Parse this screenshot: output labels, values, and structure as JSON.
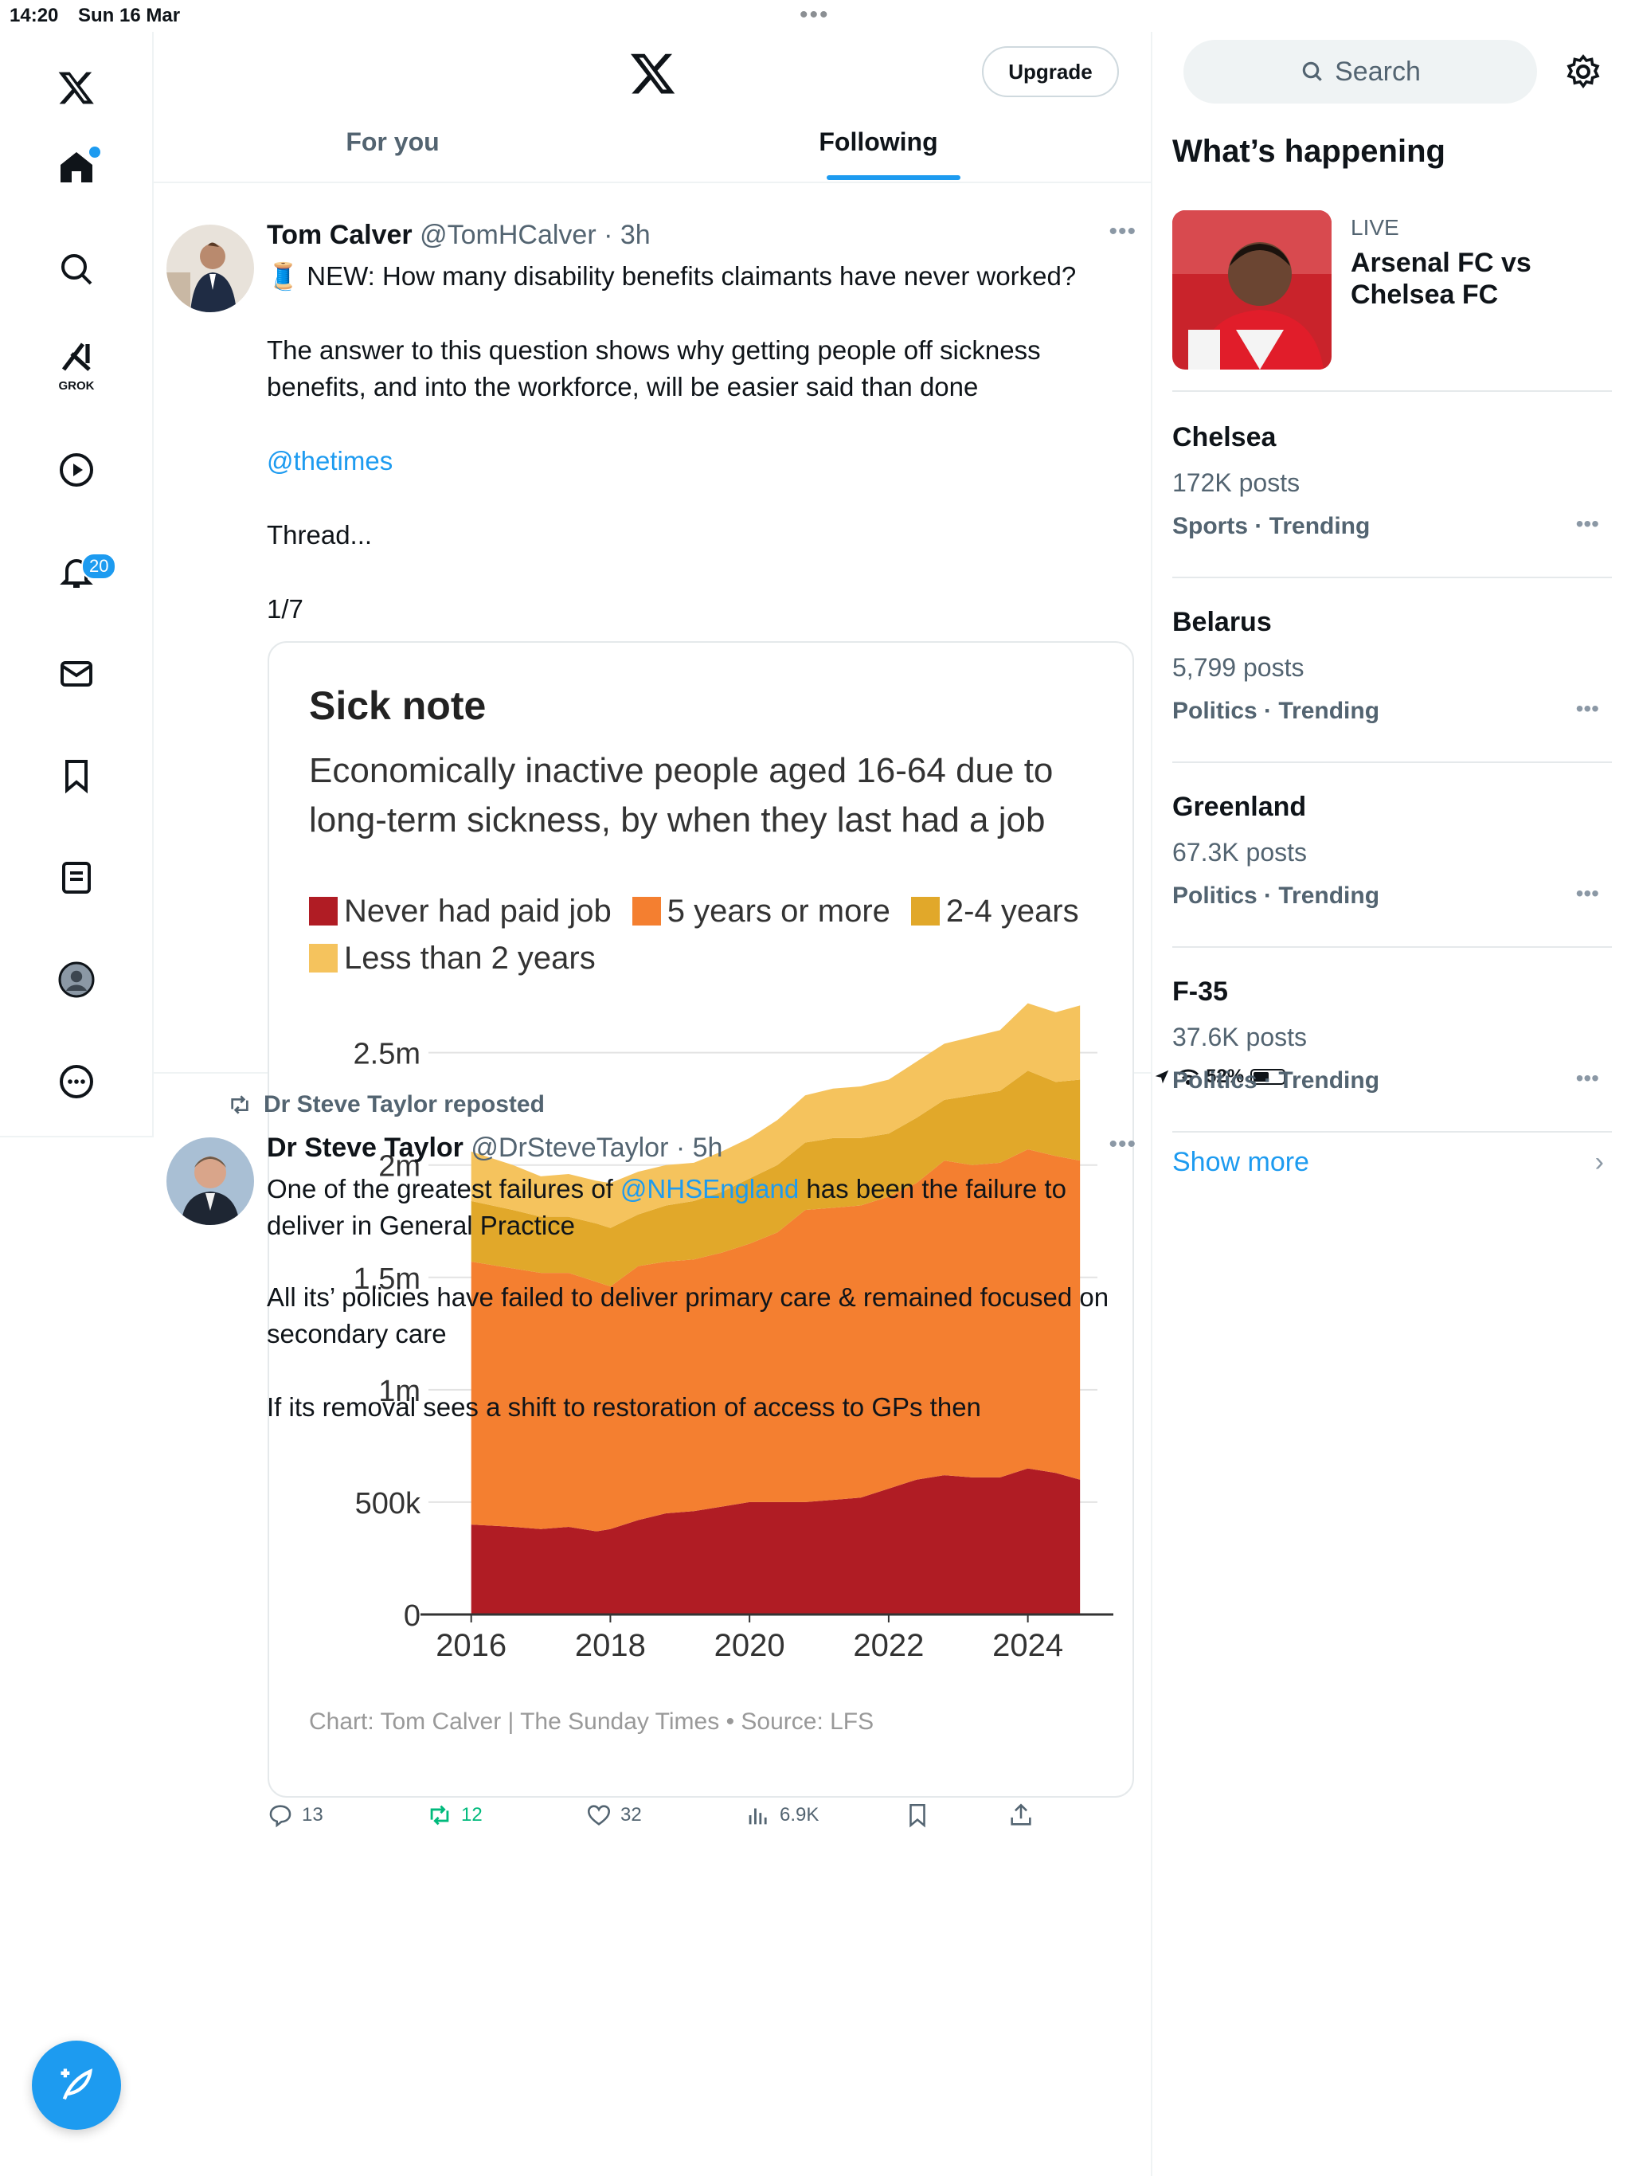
{
  "status": {
    "time": "14:20",
    "date": "Sun 16 Mar",
    "battery": "52%",
    "battery_level": 0.52
  },
  "nav": {
    "grok_label": "GROK",
    "notifications_badge": "20"
  },
  "header": {
    "upgrade_label": "Upgrade",
    "tabs": [
      "For you",
      "Following"
    ],
    "active_tab": "Following"
  },
  "tweet1": {
    "name": "Tom Calver",
    "handle": "@TomHCalver",
    "time": "· 3h",
    "line1": "🧵 NEW: How many disability benefits claimants have never worked?",
    "line2": "The answer to this question shows why getting people off sickness benefits, and into the workforce, will be easier said than done",
    "mention": "@thetimes",
    "line3": "Thread...",
    "line4": "1/7",
    "stats": {
      "replies": "13",
      "reposts": "12",
      "likes": "32",
      "views": "6.9K"
    }
  },
  "chart_data": {
    "type": "area",
    "title": "Sick note",
    "subtitle": "Economically inactive people aged 16-64 due to long-term sickness, by when they last had a job",
    "source": "Chart: Tom Calver | The Sunday Times • Source: LFS",
    "x": [
      2016.0,
      2016.6,
      2017.0,
      2017.4,
      2017.8,
      2018.0,
      2018.4,
      2018.8,
      2019.2,
      2019.6,
      2020.0,
      2020.4,
      2020.8,
      2021.2,
      2021.6,
      2022.0,
      2022.4,
      2022.8,
      2023.2,
      2023.6,
      2024.0,
      2024.4,
      2024.75
    ],
    "series": [
      {
        "name": "Never had paid job",
        "color": "#b01c24",
        "values": [
          400,
          390,
          380,
          390,
          370,
          380,
          420,
          450,
          460,
          480,
          500,
          500,
          500,
          510,
          520,
          560,
          600,
          620,
          610,
          610,
          650,
          630,
          600
        ]
      },
      {
        "name": "5 years or more",
        "color": "#f47f30",
        "values": [
          1170,
          1150,
          1140,
          1130,
          1110,
          1080,
          1130,
          1120,
          1120,
          1130,
          1150,
          1200,
          1300,
          1300,
          1300,
          1300,
          1320,
          1400,
          1390,
          1400,
          1420,
          1410,
          1420
        ]
      },
      {
        "name": "2-4 years",
        "color": "#e1a82a",
        "values": [
          270,
          260,
          250,
          250,
          260,
          260,
          230,
          250,
          260,
          270,
          290,
          300,
          300,
          310,
          300,
          280,
          290,
          270,
          310,
          320,
          350,
          330,
          360
        ]
      },
      {
        "name": "Less than 2 years",
        "color": "#f5c35d",
        "values": [
          220,
          200,
          180,
          190,
          190,
          200,
          190,
          180,
          170,
          180,
          180,
          200,
          210,
          220,
          230,
          240,
          250,
          250,
          260,
          270,
          300,
          310,
          330
        ]
      }
    ],
    "ylim": [
      0,
      2800
    ],
    "yticks": [
      0,
      500,
      1000,
      1500,
      2000,
      2500
    ],
    "ytick_labels": [
      "0",
      "500k",
      "1m",
      "1.5m",
      "2m",
      "2.5m"
    ],
    "xticks": [
      2016,
      2018,
      2020,
      2022,
      2024
    ],
    "xtick_labels": [
      "2016",
      "2018",
      "2020",
      "2022",
      "2024"
    ],
    "grid": true,
    "legend_position": "top"
  },
  "tweet2": {
    "repost_by": "Dr Steve Taylor reposted",
    "name": "Dr Steve Taylor",
    "handle": "@DrSteveTaylor",
    "time": "· 5h",
    "line1_before": "One of the greatest failures of ",
    "mention": "@NHSEngland",
    "line1_after": " has been the failure to deliver in General Practice",
    "line2": "All its’ policies have failed to deliver primary care & remained focused on secondary care",
    "line3": "If its removal sees a shift to restoration of access to GPs then"
  },
  "sidebar": {
    "search_placeholder": "Search",
    "heading": "What’s happening",
    "live": {
      "label": "LIVE",
      "title": "Arsenal FC vs Chelsea FC"
    },
    "trends": [
      {
        "name": "Chelsea",
        "count": "172K posts",
        "category": "Sports · Trending"
      },
      {
        "name": "Belarus",
        "count": "5,799 posts",
        "category": "Politics · Trending"
      },
      {
        "name": "Greenland",
        "count": "67.3K posts",
        "category": "Politics · Trending"
      },
      {
        "name": "F-35",
        "count": "37.6K posts",
        "category": "Politics · Trending"
      }
    ],
    "show_more": "Show more"
  },
  "colors": {
    "accent": "#1d9bf0",
    "repost_green": "#00ba7c"
  }
}
